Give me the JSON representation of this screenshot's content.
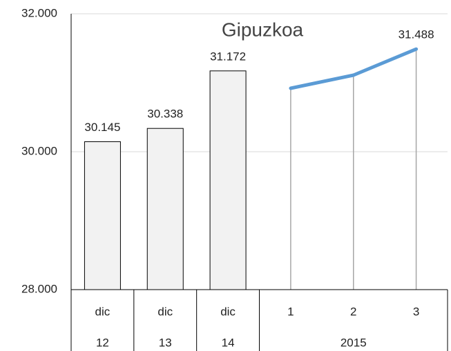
{
  "chart_data": {
    "type": "bar_line",
    "title": "Gipuzkoa",
    "groups": [
      {
        "name": "12",
        "categories": [
          "dic"
        ]
      },
      {
        "name": "13",
        "categories": [
          "dic"
        ]
      },
      {
        "name": "14",
        "categories": [
          "dic"
        ]
      },
      {
        "name": "2015",
        "categories": [
          "1",
          "2",
          "3"
        ]
      }
    ],
    "series": [
      {
        "type": "bar",
        "color": "#f2f2f2",
        "values": [
          30145,
          30338,
          31172,
          null,
          null,
          null
        ],
        "value_labels": [
          "30.145",
          "30.338",
          "31.172",
          null,
          null,
          null
        ]
      },
      {
        "type": "line",
        "color": "#5b9bd5",
        "values": [
          null,
          null,
          null,
          30920,
          31110,
          31488
        ],
        "value_labels": [
          null,
          null,
          null,
          null,
          null,
          "31.488"
        ]
      }
    ],
    "ylim": [
      28000,
      32000
    ],
    "yticks": [
      {
        "value": 28000,
        "label": "28.000"
      },
      {
        "value": 30000,
        "label": "30.000"
      },
      {
        "value": 32000,
        "label": "32.000"
      }
    ],
    "grid": true
  }
}
